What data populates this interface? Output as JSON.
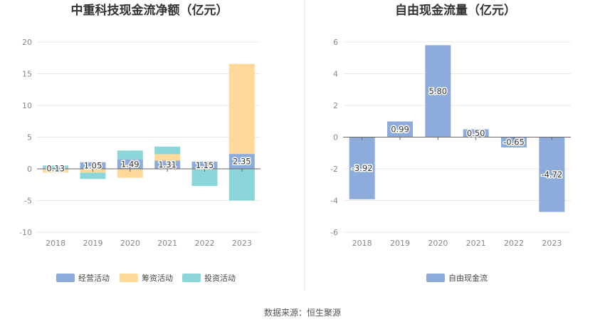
{
  "source_text": "数据来源：恒生聚源",
  "chart_data": [
    {
      "type": "bar",
      "stacked": true,
      "title": "中重科技现金流净额（亿元）",
      "categories": [
        "2018",
        "2019",
        "2020",
        "2021",
        "2022",
        "2023"
      ],
      "ylim": [
        -10,
        20
      ],
      "yticks": [
        -10,
        -5,
        0,
        5,
        10,
        15,
        20
      ],
      "grid": true,
      "legend_position": "bottom",
      "series": [
        {
          "name": "经营活动",
          "color": "#8eacdb",
          "values": [
            0.13,
            1.05,
            1.49,
            1.31,
            1.15,
            2.35
          ],
          "labels": [
            "0.13",
            "1.05",
            "1.49",
            "1.31",
            "1.15",
            "2.35"
          ]
        },
        {
          "name": "筹资活动",
          "color": "#ffd99a",
          "values": [
            -0.6,
            -0.6,
            -1.4,
            1.0,
            -0.1,
            14.2
          ]
        },
        {
          "name": "投资活动",
          "color": "#8bd6d8",
          "values": [
            0.4,
            -1.0,
            1.4,
            1.2,
            -2.6,
            -5.0
          ]
        }
      ]
    },
    {
      "type": "bar",
      "title": "自由现金流量（亿元）",
      "categories": [
        "2018",
        "2019",
        "2020",
        "2021",
        "2022",
        "2023"
      ],
      "ylim": [
        -6,
        6
      ],
      "yticks": [
        -6,
        -4,
        -2,
        0,
        2,
        4,
        6
      ],
      "grid": true,
      "legend_position": "bottom",
      "series": [
        {
          "name": "自由现金流",
          "color": "#8eacdb",
          "values": [
            -3.92,
            0.99,
            5.8,
            0.5,
            -0.65,
            -4.72
          ],
          "labels": [
            "-3.92",
            "0.99",
            "5.80",
            "0.50",
            "-0.65",
            "-4.72"
          ]
        }
      ]
    }
  ]
}
